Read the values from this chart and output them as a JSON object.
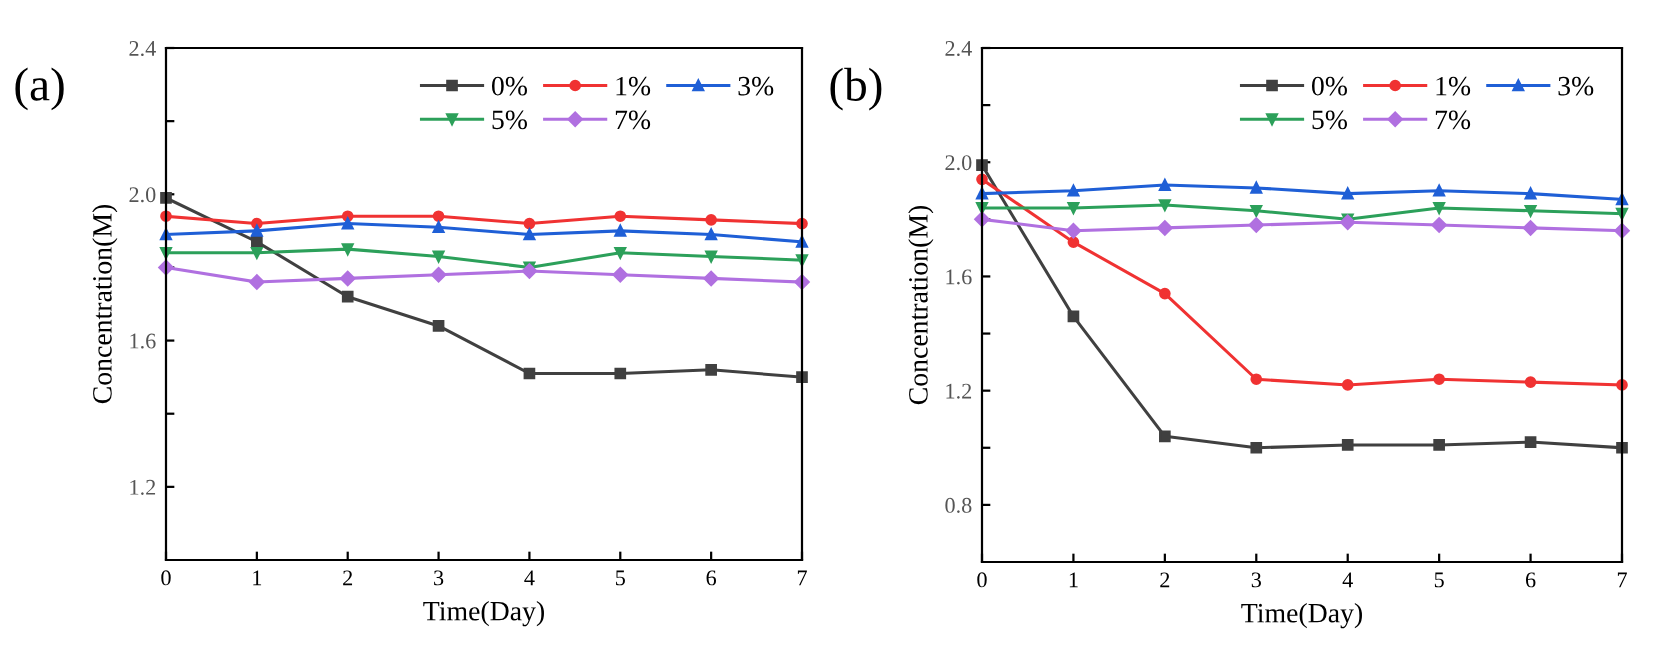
{
  "chart_data": [
    {
      "type": "line",
      "annotations": [
        "(a)"
      ],
      "xlabel": "Time(Day)",
      "ylabel": "Concentration(M)",
      "x": [
        0,
        1,
        2,
        3,
        4,
        5,
        6,
        7
      ],
      "xlim": [
        0,
        7
      ],
      "xticks": [
        0,
        1,
        2,
        3,
        4,
        5,
        6,
        7
      ],
      "ylim": [
        1.0,
        2.4
      ],
      "yticks": [
        1.2,
        {
          "value": 1.4,
          "label": null
        },
        1.6,
        {
          "value": 1.8,
          "label": null
        },
        {
          "value": 2.0,
          "label": "2.0"
        },
        {
          "value": 2.2,
          "label": null
        },
        2.4
      ],
      "legend": "top right",
      "grid": false,
      "line_style": "solid",
      "series": [
        {
          "name": "0%",
          "color": "#404040",
          "marker": "square",
          "values": [
            1.99,
            1.87,
            1.72,
            1.64,
            1.51,
            1.51,
            1.52,
            1.5
          ]
        },
        {
          "name": "1%",
          "color": "#f03232",
          "marker": "circle",
          "values": [
            1.94,
            1.92,
            1.94,
            1.94,
            1.92,
            1.94,
            1.93,
            1.92
          ]
        },
        {
          "name": "3%",
          "color": "#1f5fd6",
          "marker": "triangle",
          "values": [
            1.89,
            1.9,
            1.92,
            1.91,
            1.89,
            1.9,
            1.89,
            1.87
          ]
        },
        {
          "name": "5%",
          "color": "#2ca05a",
          "marker": "triangle_down",
          "values": [
            1.84,
            1.84,
            1.85,
            1.83,
            1.8,
            1.84,
            1.83,
            1.82
          ]
        },
        {
          "name": "7%",
          "color": "#b070e0",
          "marker": "diamond",
          "values": [
            1.8,
            1.76,
            1.77,
            1.78,
            1.79,
            1.78,
            1.77,
            1.76
          ]
        }
      ]
    },
    {
      "type": "line",
      "annotations": [
        "(b)"
      ],
      "xlabel": "Time(Day)",
      "ylabel": "Concentration(M)",
      "x": [
        0,
        1,
        2,
        3,
        4,
        5,
        6,
        7
      ],
      "xlim": [
        0,
        7
      ],
      "xticks": [
        0,
        1,
        2,
        3,
        4,
        5,
        6,
        7
      ],
      "ylim": [
        0.6,
        2.4
      ],
      "yticks": [
        0.8,
        {
          "value": 1.0,
          "label": null
        },
        1.2,
        {
          "value": 1.4,
          "label": null
        },
        1.6,
        {
          "value": 1.8,
          "label": null
        },
        {
          "value": 2.0,
          "label": "2.0"
        },
        {
          "value": 2.2,
          "label": null
        },
        2.4
      ],
      "legend": "top right",
      "grid": false,
      "line_style": "solid",
      "series": [
        {
          "name": "0%",
          "color": "#404040",
          "marker": "square",
          "values": [
            1.99,
            1.46,
            1.04,
            1.0,
            1.01,
            1.01,
            1.02,
            1.0
          ]
        },
        {
          "name": "1%",
          "color": "#f03232",
          "marker": "circle",
          "values": [
            1.94,
            1.72,
            1.54,
            1.24,
            1.22,
            1.24,
            1.23,
            1.22
          ]
        },
        {
          "name": "3%",
          "color": "#1f5fd6",
          "marker": "triangle",
          "values": [
            1.89,
            1.9,
            1.92,
            1.91,
            1.89,
            1.9,
            1.89,
            1.87
          ]
        },
        {
          "name": "5%",
          "color": "#2ca05a",
          "marker": "triangle_down",
          "values": [
            1.84,
            1.84,
            1.85,
            1.83,
            1.8,
            1.84,
            1.83,
            1.82
          ]
        },
        {
          "name": "7%",
          "color": "#b070e0",
          "marker": "diamond",
          "values": [
            1.8,
            1.76,
            1.77,
            1.78,
            1.79,
            1.78,
            1.77,
            1.76
          ]
        }
      ]
    }
  ]
}
